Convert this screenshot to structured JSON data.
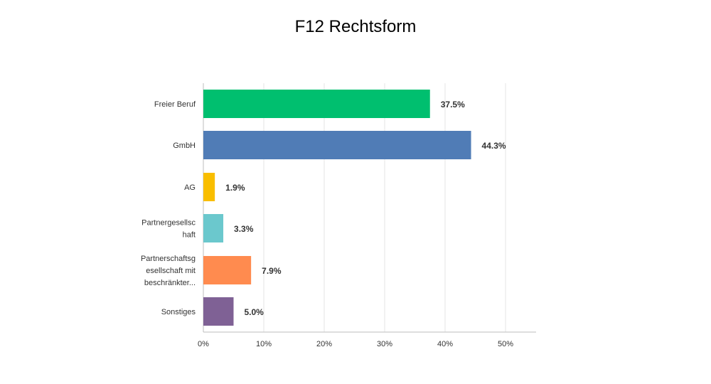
{
  "chart_data": {
    "type": "bar",
    "orientation": "horizontal",
    "title": "F12 Rechtsform",
    "categories": [
      [
        "Freier Beruf"
      ],
      [
        "GmbH"
      ],
      [
        "AG"
      ],
      [
        "Partnergesellsc",
        "haft"
      ],
      [
        "Partnerschaftsg",
        "esellschaft mit",
        "beschränkter..."
      ],
      [
        "Sonstiges"
      ]
    ],
    "values": [
      37.5,
      44.3,
      1.9,
      3.3,
      7.9,
      5.0
    ],
    "value_labels": [
      "37.5%",
      "44.3%",
      "1.9%",
      "3.3%",
      "7.9%",
      "5.0%"
    ],
    "colors": [
      "#00bf6f",
      "#507cb6",
      "#f9be00",
      "#6bc8cd",
      "#ff8b4f",
      "#7f6195"
    ],
    "xlim": [
      0,
      55
    ],
    "xticks": [
      0,
      10,
      20,
      30,
      40,
      50
    ],
    "xtick_labels": [
      "0%",
      "10%",
      "20%",
      "30%",
      "40%",
      "50%"
    ],
    "grid": true,
    "xlabel": "",
    "ylabel": ""
  }
}
